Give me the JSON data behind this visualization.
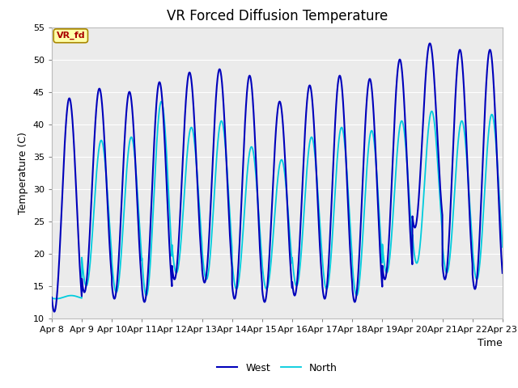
{
  "title": "VR Forced Diffusion Temperature",
  "xlabel": "Time",
  "ylabel": "Temperature (C)",
  "ylim": [
    10,
    55
  ],
  "x_tick_labels": [
    "Apr 8",
    "Apr 9",
    "Apr 10",
    "Apr 11",
    "Apr 12",
    "Apr 13",
    "Apr 14",
    "Apr 15",
    "Apr 16",
    "Apr 17",
    "Apr 18",
    "Apr 19",
    "Apr 20",
    "Apr 21",
    "Apr 22",
    "Apr 23"
  ],
  "west_color": "#0000bb",
  "north_color": "#00ccdd",
  "background_color": "#ebebeb",
  "figure_background": "#ffffff",
  "legend_labels": [
    "West",
    "North"
  ],
  "label_box_text": "VR_fd",
  "label_box_bg": "#ffffaa",
  "label_box_text_color": "#aa0000",
  "label_box_edge_color": "#aa8800",
  "yticks": [
    10,
    15,
    20,
    25,
    30,
    35,
    40,
    45,
    50,
    55
  ],
  "title_fontsize": 12,
  "axis_fontsize": 9,
  "tick_fontsize": 8,
  "legend_fontsize": 9,
  "west_linewidth": 1.5,
  "north_linewidth": 1.3,
  "west_peaks": [
    44.0,
    45.5,
    45.0,
    46.5,
    48.0,
    48.5,
    47.5,
    43.5,
    46.0,
    47.5,
    47.0,
    50.0,
    52.5,
    51.5,
    51.5
  ],
  "west_troughs": [
    11.0,
    14.0,
    13.0,
    12.5,
    16.0,
    15.5,
    13.0,
    12.5,
    13.5,
    13.0,
    12.5,
    16.0,
    24.0,
    16.0,
    14.5
  ],
  "north_peaks": [
    13.5,
    37.5,
    38.0,
    43.5,
    39.5,
    40.5,
    36.5,
    34.5,
    38.0,
    39.5,
    39.0,
    40.5,
    42.0,
    40.5,
    41.5
  ],
  "north_troughs": [
    13.0,
    15.0,
    14.0,
    13.5,
    17.0,
    16.0,
    14.5,
    14.5,
    15.0,
    14.5,
    13.5,
    17.0,
    18.5,
    17.0,
    16.0
  ]
}
